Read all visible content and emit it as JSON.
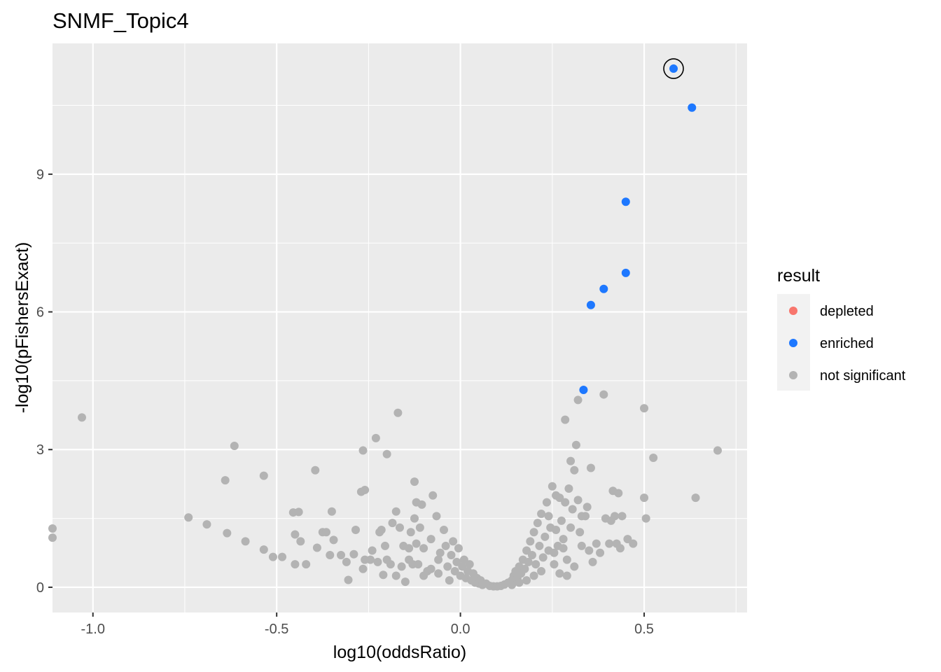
{
  "chart_data": {
    "type": "scatter",
    "title": "SNMF_Topic4",
    "xlabel": "log10(oddsRatio)",
    "ylabel": "-log10(pFishersExact)",
    "xlim": [
      -1.11,
      0.78
    ],
    "ylim": [
      -0.55,
      11.85
    ],
    "x_ticks": [
      -1.0,
      -0.5,
      0.0,
      0.5
    ],
    "x_tick_labels": [
      "-1.0",
      "-0.5",
      "0.0",
      "0.5"
    ],
    "y_ticks": [
      0,
      3,
      6,
      9
    ],
    "y_tick_labels": [
      "0",
      "3",
      "6",
      "9"
    ],
    "grid": true,
    "legend": {
      "title": "result",
      "placement": "right",
      "entries": [
        {
          "label": "depleted",
          "color": "#F8766D"
        },
        {
          "label": "enriched",
          "color": "#1E78FF"
        },
        {
          "label": "not significant",
          "color": "#B3B3B3"
        }
      ]
    },
    "highlighted_point": {
      "x": 0.58,
      "y": 11.3
    },
    "series": [
      {
        "name": "enriched",
        "color": "#1E78FF",
        "points": [
          [
            0.58,
            11.3
          ],
          [
            0.63,
            10.45
          ],
          [
            0.45,
            8.4
          ],
          [
            0.45,
            6.85
          ],
          [
            0.39,
            6.5
          ],
          [
            0.355,
            6.15
          ],
          [
            0.335,
            4.3
          ]
        ]
      },
      {
        "name": "not significant",
        "color": "#B3B3B3",
        "points": [
          [
            -1.11,
            1.28
          ],
          [
            -1.11,
            1.08
          ],
          [
            -1.03,
            3.7
          ],
          [
            -0.74,
            1.52
          ],
          [
            -0.69,
            1.37
          ],
          [
            -0.635,
            1.18
          ],
          [
            -0.64,
            2.33
          ],
          [
            -0.615,
            3.08
          ],
          [
            -0.585,
            1.0
          ],
          [
            -0.535,
            2.43
          ],
          [
            -0.535,
            0.82
          ],
          [
            -0.51,
            0.66
          ],
          [
            -0.485,
            0.66
          ],
          [
            -0.455,
            1.63
          ],
          [
            -0.45,
            1.15
          ],
          [
            -0.44,
            1.64
          ],
          [
            -0.435,
            1.0
          ],
          [
            -0.42,
            0.5
          ],
          [
            -0.45,
            0.5
          ],
          [
            -0.395,
            2.55
          ],
          [
            -0.39,
            0.86
          ],
          [
            -0.375,
            1.2
          ],
          [
            -0.365,
            1.2
          ],
          [
            -0.35,
            1.65
          ],
          [
            -0.355,
            0.7
          ],
          [
            -0.345,
            1.03
          ],
          [
            -0.325,
            0.7
          ],
          [
            -0.305,
            0.16
          ],
          [
            -0.31,
            0.55
          ],
          [
            -0.29,
            0.72
          ],
          [
            -0.285,
            1.25
          ],
          [
            -0.27,
            2.08
          ],
          [
            -0.26,
            2.12
          ],
          [
            -0.265,
            2.98
          ],
          [
            -0.26,
            0.6
          ],
          [
            -0.265,
            0.4
          ],
          [
            -0.245,
            0.6
          ],
          [
            -0.24,
            0.8
          ],
          [
            -0.23,
            3.25
          ],
          [
            -0.225,
            0.55
          ],
          [
            -0.215,
            1.25
          ],
          [
            -0.205,
            0.9
          ],
          [
            -0.22,
            1.2
          ],
          [
            -0.2,
            2.9
          ],
          [
            -0.2,
            0.6
          ],
          [
            -0.21,
            0.27
          ],
          [
            -0.19,
            0.5
          ],
          [
            -0.185,
            1.4
          ],
          [
            -0.175,
            1.65
          ],
          [
            -0.17,
            3.8
          ],
          [
            -0.165,
            1.3
          ],
          [
            -0.175,
            0.25
          ],
          [
            -0.16,
            0.45
          ],
          [
            -0.155,
            0.9
          ],
          [
            -0.15,
            0.12
          ],
          [
            -0.14,
            0.6
          ],
          [
            -0.135,
            1.2
          ],
          [
            -0.125,
            2.3
          ],
          [
            -0.12,
            1.85
          ],
          [
            -0.125,
            1.5
          ],
          [
            -0.12,
            0.95
          ],
          [
            -0.115,
            0.5
          ],
          [
            -0.11,
            1.3
          ],
          [
            -0.105,
            1.8
          ],
          [
            -0.1,
            0.85
          ],
          [
            -0.09,
            0.35
          ],
          [
            -0.08,
            1.05
          ],
          [
            -0.075,
            2.0
          ],
          [
            -0.065,
            1.55
          ],
          [
            -0.06,
            0.3
          ],
          [
            -0.055,
            0.75
          ],
          [
            -0.045,
            1.25
          ],
          [
            -0.04,
            0.9
          ],
          [
            -0.035,
            0.45
          ],
          [
            -0.03,
            0.15
          ],
          [
            -0.025,
            0.7
          ],
          [
            -0.02,
            1.0
          ],
          [
            -0.015,
            0.35
          ],
          [
            -0.01,
            0.55
          ],
          [
            -0.005,
            0.85
          ],
          [
            0.0,
            0.25
          ],
          [
            0.005,
            0.45
          ],
          [
            0.01,
            0.6
          ],
          [
            0.015,
            0.2
          ],
          [
            0.02,
            0.35
          ],
          [
            0.025,
            0.5
          ],
          [
            0.03,
            0.15
          ],
          [
            0.035,
            0.3
          ],
          [
            0.04,
            0.1
          ],
          [
            0.045,
            0.2
          ],
          [
            0.05,
            0.08
          ],
          [
            0.055,
            0.15
          ],
          [
            0.06,
            0.05
          ],
          [
            0.07,
            0.08
          ],
          [
            0.08,
            0.03
          ],
          [
            0.09,
            0.02
          ],
          [
            0.1,
            0.02
          ],
          [
            0.11,
            0.03
          ],
          [
            0.12,
            0.06
          ],
          [
            0.13,
            0.1
          ],
          [
            0.14,
            0.15
          ],
          [
            0.145,
            0.25
          ],
          [
            0.15,
            0.35
          ],
          [
            0.155,
            0.2
          ],
          [
            0.16,
            0.45
          ],
          [
            0.165,
            0.3
          ],
          [
            0.17,
            0.6
          ],
          [
            0.175,
            0.4
          ],
          [
            0.18,
            0.8
          ],
          [
            0.185,
            0.55
          ],
          [
            0.19,
            1.0
          ],
          [
            0.195,
            0.7
          ],
          [
            0.2,
            1.2
          ],
          [
            0.205,
            0.5
          ],
          [
            0.21,
            1.4
          ],
          [
            0.215,
            0.9
          ],
          [
            0.22,
            1.6
          ],
          [
            0.225,
            0.65
          ],
          [
            0.23,
            1.1
          ],
          [
            0.235,
            1.85
          ],
          [
            0.24,
            0.8
          ],
          [
            0.245,
            1.3
          ],
          [
            0.25,
            2.2
          ],
          [
            0.255,
            0.5
          ],
          [
            0.26,
            2.0
          ],
          [
            0.265,
            0.9
          ],
          [
            0.27,
            1.95
          ],
          [
            0.275,
            1.45
          ],
          [
            0.28,
            1.05
          ],
          [
            0.285,
            1.85
          ],
          [
            0.29,
            0.6
          ],
          [
            0.295,
            2.15
          ],
          [
            0.3,
            2.75
          ],
          [
            0.305,
            1.7
          ],
          [
            0.31,
            2.55
          ],
          [
            0.315,
            3.1
          ],
          [
            0.32,
            4.08
          ],
          [
            0.325,
            1.2
          ],
          [
            0.33,
            0.9
          ],
          [
            0.34,
            1.55
          ],
          [
            0.345,
            1.75
          ],
          [
            0.35,
            0.8
          ],
          [
            0.355,
            2.6
          ],
          [
            0.36,
            0.55
          ],
          [
            0.37,
            0.95
          ],
          [
            0.38,
            0.75
          ],
          [
            0.39,
            4.2
          ],
          [
            0.395,
            1.5
          ],
          [
            0.405,
            0.95
          ],
          [
            0.41,
            1.45
          ],
          [
            0.415,
            2.1
          ],
          [
            0.42,
            1.55
          ],
          [
            0.425,
            0.95
          ],
          [
            0.43,
            2.05
          ],
          [
            0.435,
            0.85
          ],
          [
            0.44,
            1.55
          ],
          [
            0.455,
            1.05
          ],
          [
            0.47,
            0.95
          ],
          [
            0.5,
            3.9
          ],
          [
            0.5,
            1.95
          ],
          [
            0.505,
            1.5
          ],
          [
            0.525,
            2.82
          ],
          [
            0.64,
            1.95
          ],
          [
            0.7,
            2.98
          ],
          [
            0.285,
            3.65
          ],
          [
            0.27,
            0.3
          ],
          [
            0.255,
            0.75
          ],
          [
            0.22,
            0.35
          ],
          [
            0.2,
            0.25
          ],
          [
            0.18,
            0.15
          ],
          [
            0.16,
            0.1
          ],
          [
            0.14,
            0.05
          ],
          [
            -0.06,
            0.6
          ],
          [
            -0.08,
            0.4
          ],
          [
            -0.1,
            0.25
          ],
          [
            -0.13,
            0.5
          ],
          [
            -0.14,
            0.85
          ],
          [
            0.24,
            1.55
          ],
          [
            0.26,
            1.25
          ],
          [
            0.28,
            0.85
          ],
          [
            0.3,
            1.3
          ],
          [
            0.32,
            1.9
          ],
          [
            0.33,
            1.55
          ],
          [
            0.31,
            0.45
          ],
          [
            0.29,
            0.25
          ]
        ]
      }
    ]
  }
}
